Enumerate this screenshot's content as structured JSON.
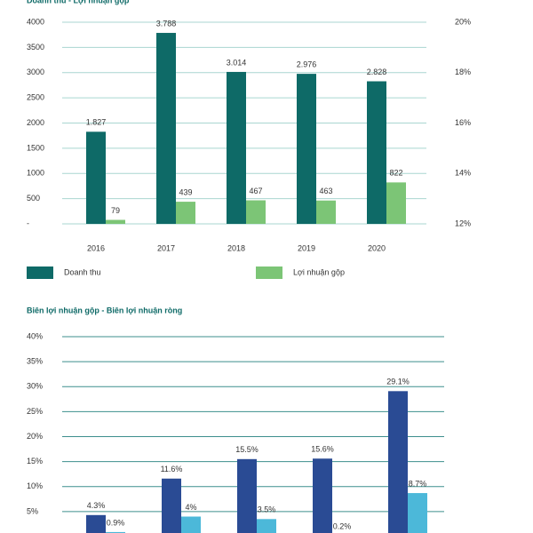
{
  "chart_data": [
    {
      "type": "bar",
      "title": "Doanh thu - Lợi nhuận gộp",
      "categories": [
        "2016",
        "2017",
        "2018",
        "2019",
        "2020"
      ],
      "series": [
        {
          "name": "Doanh thu",
          "color": "#0e6a67",
          "values": [
            1827,
            3788,
            3014,
            2976,
            2828
          ],
          "value_labels": [
            "1.827",
            "3.788",
            "3.014",
            "2.976",
            "2.828"
          ]
        },
        {
          "name": "Lợi nhuận gộp",
          "color": "#7cc576",
          "values": [
            79,
            439,
            467,
            463,
            822
          ]
        }
      ],
      "ylim": [
        0,
        4000
      ],
      "yticks": [
        {
          "value": 0,
          "label": "-"
        },
        500,
        1000,
        1500,
        2000,
        2500,
        3000,
        3500,
        4000
      ],
      "y2lim": [
        12,
        20
      ],
      "y2ticks": [
        {
          "value": 12,
          "label": "12%"
        },
        {
          "value": 14,
          "label": "14%"
        },
        {
          "value": 16,
          "label": "16%"
        },
        {
          "value": 18,
          "label": "18%"
        },
        {
          "value": 20,
          "label": "20%"
        }
      ],
      "grid": true,
      "legend": "bottom"
    },
    {
      "type": "bar",
      "title": "Biên lợi nhuận gộp - Biên lợi nhuận ròng",
      "series": [
        {
          "color": "#2a4b94",
          "values": [
            4.3,
            11.6,
            15.5,
            15.6,
            29.1
          ],
          "value_labels": [
            "4.3%",
            "11.6%",
            "15.5%",
            "15.6%",
            "29.1%"
          ]
        },
        {
          "color": "#4cb8d9",
          "values": [
            0.9,
            4,
            3.5,
            0.2,
            8.7
          ],
          "value_labels": [
            "0.9%",
            "4%",
            "3.5%",
            "0.2%",
            "8.7%"
          ]
        }
      ],
      "ylim": [
        0,
        40
      ],
      "yticks": [
        {
          "value": 5,
          "label": "5%"
        },
        {
          "value": 10,
          "label": "10%"
        },
        {
          "value": 15,
          "label": "15%"
        },
        {
          "value": 20,
          "label": "20%"
        },
        {
          "value": 25,
          "label": "25%"
        },
        {
          "value": 30,
          "label": "30%"
        },
        {
          "value": 35,
          "label": "35%"
        },
        {
          "value": 40,
          "label": "40%"
        }
      ],
      "grid": true
    }
  ]
}
